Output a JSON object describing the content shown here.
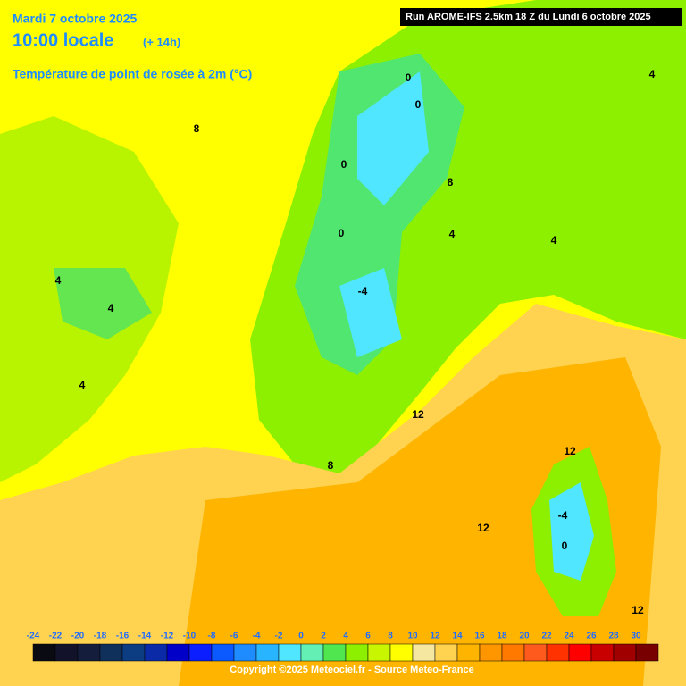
{
  "header": {
    "date": "Mardi 7 octobre 2025",
    "time": "10:00 locale",
    "lead": "(+ 14h)",
    "parameter": "Température de point de rosée à 2m (°C)",
    "run": "Run AROME-IFS 2.5km 18 Z du Lundi 6 octobre 2025"
  },
  "legend": {
    "ticks": [
      -24,
      -22,
      -20,
      -18,
      -16,
      -14,
      -12,
      -10,
      -8,
      -6,
      -4,
      -2,
      0,
      2,
      4,
      6,
      8,
      10,
      12,
      14,
      16,
      18,
      20,
      22,
      24,
      26,
      28,
      30
    ],
    "colors": [
      "#0a0a12",
      "#12122a",
      "#141e3c",
      "#10305c",
      "#0c3c82",
      "#0a2aa8",
      "#0000c8",
      "#0a1eff",
      "#0a5aff",
      "#1e8cff",
      "#28b4ff",
      "#50e6ff",
      "#64f0b4",
      "#50e650",
      "#8cf000",
      "#c8f500",
      "#ffff00",
      "#f5e6a0",
      "#ffd250",
      "#ffb400",
      "#ff9600",
      "#ff7800",
      "#ff5a1e",
      "#ff3200",
      "#ff0000",
      "#c80000",
      "#a00000",
      "#780000"
    ]
  },
  "contour_labels": [
    0,
    0,
    0,
    0,
    4,
    4,
    4,
    4,
    4,
    4,
    8,
    8,
    8,
    12,
    12,
    12,
    12,
    -4,
    -4,
    0
  ],
  "copyright": "Copyright ©2025 Meteociel.fr - Source Meteo-France"
}
